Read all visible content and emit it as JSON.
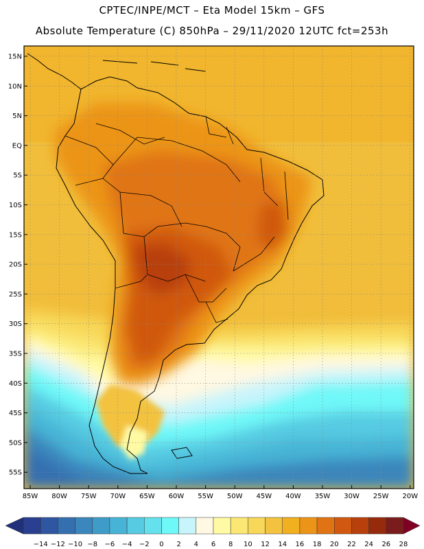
{
  "header": {
    "line1": "CPTEC/INPE/MCT –  Eta Model 15km – GFS",
    "line2": "Absolute Temperature (C) 850hPa – 29/11/2020 12UTC fct=253h"
  },
  "axes": {
    "lat_ticks": [
      "15N",
      "10N",
      "5N",
      "EQ",
      "5S",
      "10S",
      "15S",
      "20S",
      "25S",
      "30S",
      "35S",
      "40S",
      "45S",
      "50S",
      "55S"
    ],
    "lon_ticks": [
      "85W",
      "80W",
      "75W",
      "70W",
      "65W",
      "60W",
      "55W",
      "50W",
      "45W",
      "40W",
      "35W",
      "30W",
      "25W",
      "20W"
    ]
  },
  "colorbar": {
    "labels": [
      "-14",
      "-12",
      "-10",
      "-8",
      "-6",
      "-4",
      "-2",
      "0",
      "2",
      "4",
      "6",
      "8",
      "10",
      "12",
      "14",
      "16",
      "18",
      "20",
      "22",
      "24",
      "26",
      "28"
    ],
    "colors": [
      "#2a3f8f",
      "#2f56a0",
      "#3470b0",
      "#3b86bc",
      "#3f9cc8",
      "#47b4d6",
      "#56cbe2",
      "#64e1ec",
      "#6ff8f8",
      "#c8f4fb",
      "#fff8e2",
      "#fffaa3",
      "#fbe874",
      "#f8d859",
      "#f3c340",
      "#f0b020",
      "#ec9418",
      "#e07414",
      "#d05810",
      "#b8400c",
      "#962a0c",
      "#7a1c1c"
    ],
    "under_color": "#20307a",
    "over_color": "#800024"
  }
}
